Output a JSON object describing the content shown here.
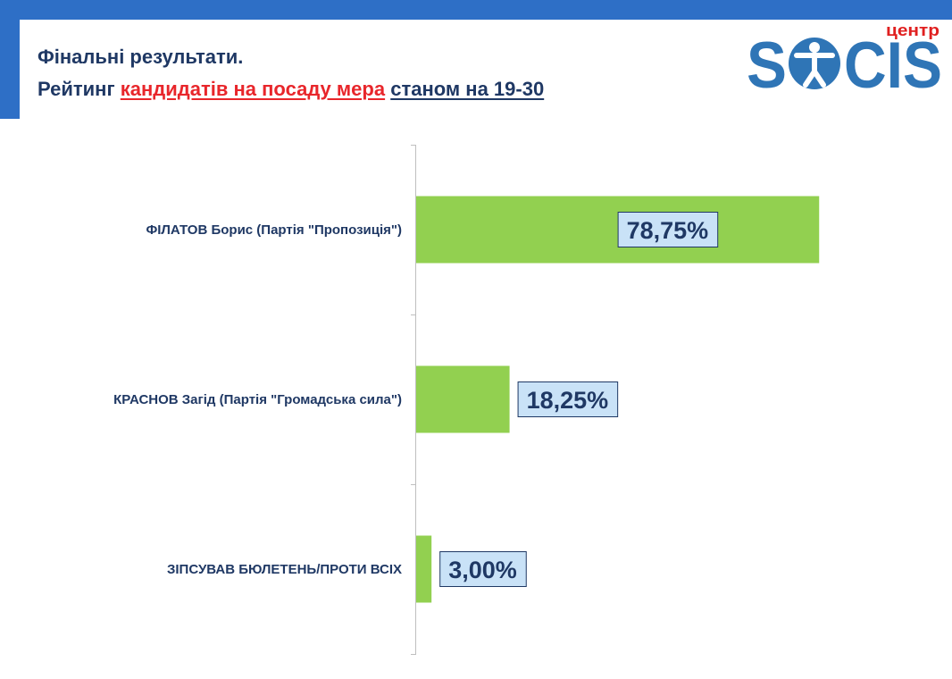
{
  "header": {
    "title_line1": "Фінальні результати.",
    "title_line2_prefix": "Рейтинг",
    "title_line2_highlight": "кандидатів на посаду мера",
    "title_line2_suffix": "станом на 19-30"
  },
  "logo": {
    "tag": "центр",
    "name": "SOCIS"
  },
  "colors": {
    "brand_blue": "#2e6fc6",
    "title_navy": "#1f3864",
    "highlight_red": "#e8262b",
    "logo_blue": "#2f75b6",
    "bar_green": "#92d050",
    "label_box_fill": "#c9e2f7",
    "axis_gray": "#bfbfbf"
  },
  "chart_data": {
    "type": "bar",
    "orientation": "horizontal",
    "categories": [
      "ФІЛАТОВ Борис (Партія \"Пропозиція\")",
      "КРАСНОВ Загід (Партія \"Громадська сила\")",
      "ЗІПСУВАВ БЮЛЕТЕНЬ/ПРОТИ ВСІХ"
    ],
    "values": [
      78.75,
      18.25,
      3.0
    ],
    "data_labels": [
      "78,75%",
      "18,25%",
      "3,00%"
    ],
    "xlim": [
      0,
      100
    ],
    "grid": false,
    "legend": "none"
  }
}
